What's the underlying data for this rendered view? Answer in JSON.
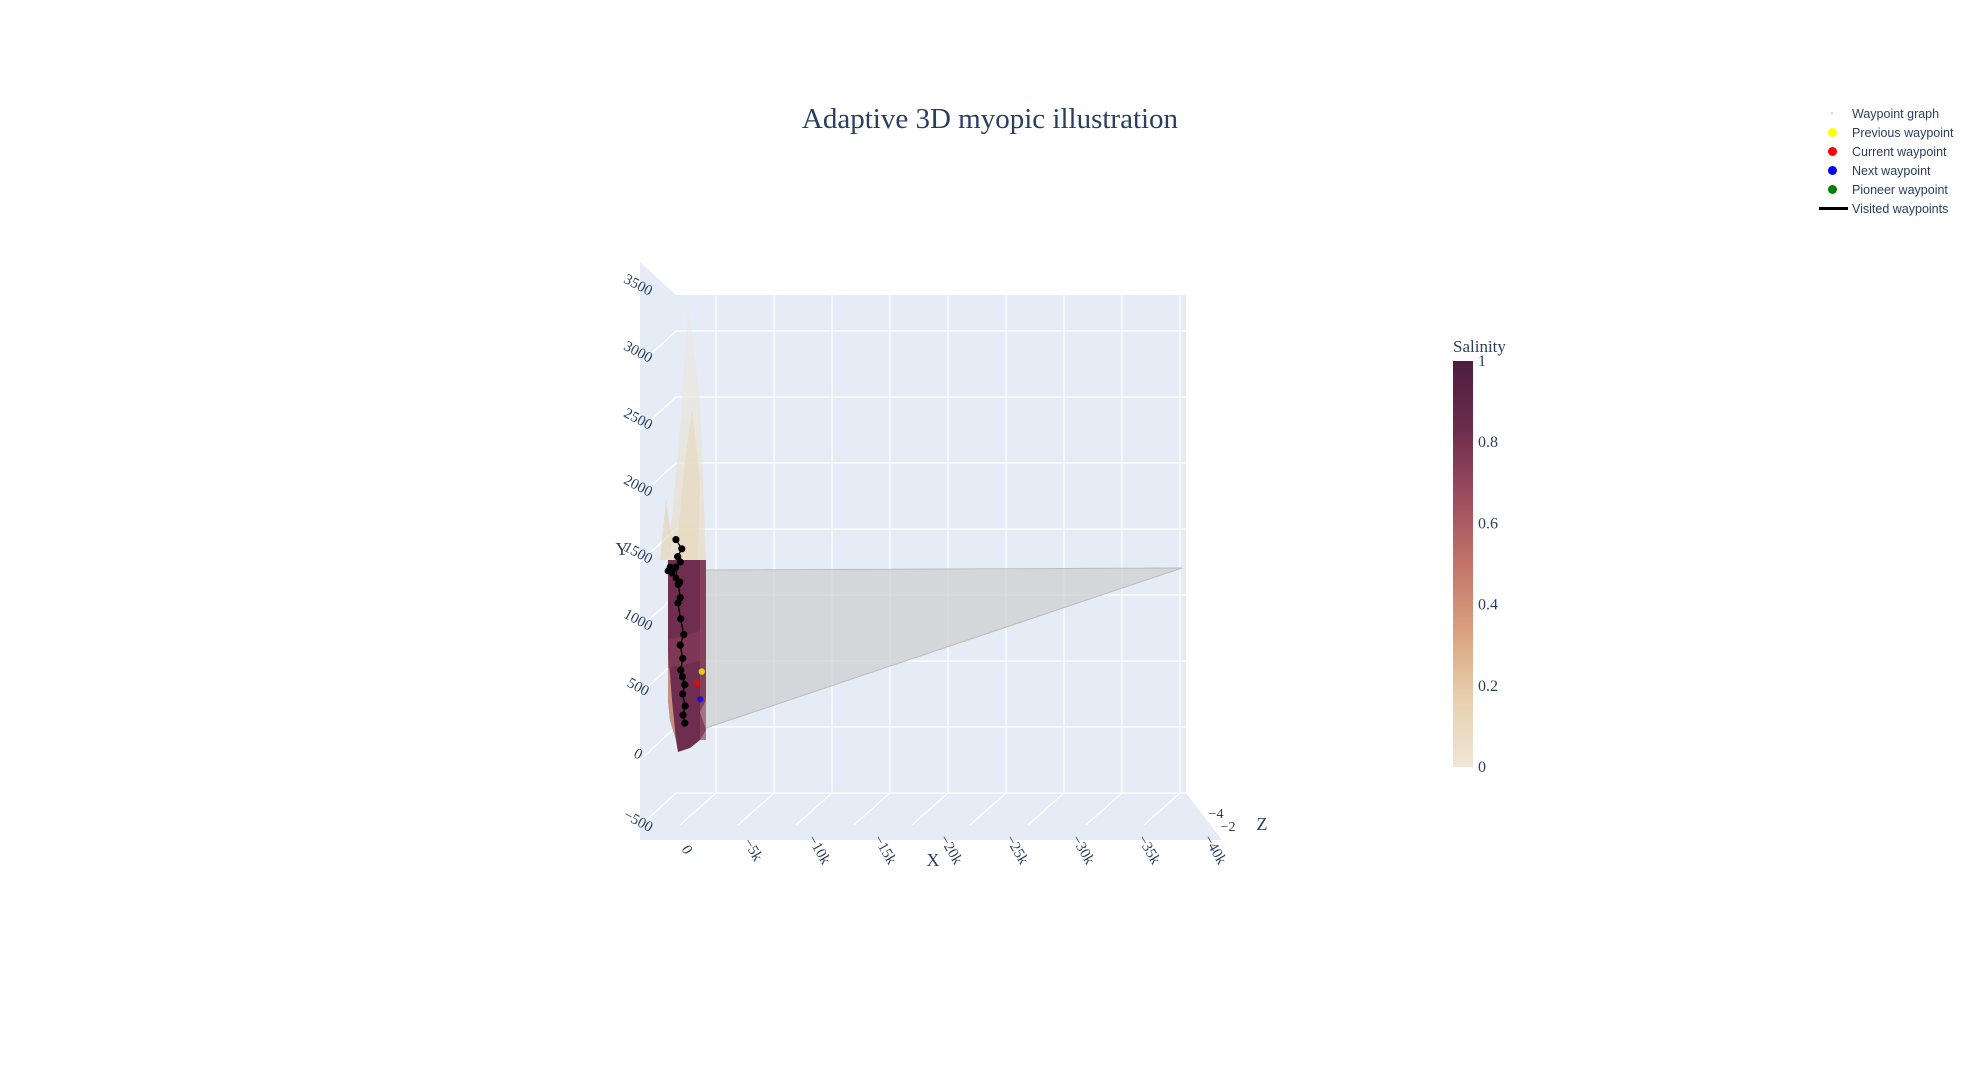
{
  "chart_data": {
    "type": "scatter3d",
    "title": "Adaptive 3D myopic illustration",
    "axes": {
      "x": {
        "label": "X",
        "tick_labels": [
          "0",
          "−5k",
          "−10k",
          "−15k",
          "−20k",
          "−25k",
          "−30k",
          "−35k",
          "−40k"
        ],
        "range": [
          0,
          -40000
        ]
      },
      "y": {
        "label": "Y",
        "tick_labels": [
          "−500",
          "0",
          "500",
          "1000",
          "1500",
          "2000",
          "2500",
          "3000",
          "3500"
        ],
        "range": [
          -500,
          3500
        ]
      },
      "z": {
        "label": "Z",
        "tick_labels": [
          "−2",
          "−4"
        ]
      }
    },
    "colorbar": {
      "title": "Salinity",
      "ticks": [
        "0",
        "0.2",
        "0.4",
        "0.6",
        "0.8",
        "1"
      ],
      "range": [
        0,
        1
      ],
      "colorscale": [
        "#efe6d6",
        "#e8cfae",
        "#d9a27f",
        "#c2746a",
        "#9b4c5e",
        "#6e2d4f",
        "#4c1e3e"
      ]
    },
    "legend_position": "top-right",
    "series": [
      {
        "name": "Waypoint graph",
        "marker": "tiny",
        "color": "#c8c8c8"
      },
      {
        "name": "Previous waypoint",
        "marker": "dot",
        "color": "#ffff00"
      },
      {
        "name": "Current waypoint",
        "marker": "dot",
        "color": "#ff0000"
      },
      {
        "name": "Next waypoint",
        "marker": "dot",
        "color": "#0000ff"
      },
      {
        "name": "Pioneer waypoint",
        "marker": "dot",
        "color": "#008000"
      },
      {
        "name": "Visited waypoints",
        "marker": "line",
        "color": "#000000"
      }
    ],
    "visited_path": [
      [
        50,
        1420
      ],
      [
        -60,
        1350
      ],
      [
        30,
        1290
      ],
      [
        -20,
        1250
      ],
      [
        80,
        1210
      ],
      [
        40,
        1080
      ],
      [
        10,
        980
      ],
      [
        60,
        940
      ],
      [
        20,
        820
      ],
      [
        -30,
        700
      ],
      [
        50,
        620
      ],
      [
        10,
        520
      ],
      [
        60,
        430
      ],
      [
        30,
        380
      ],
      [
        -10,
        320
      ],
      [
        40,
        250
      ],
      [
        0,
        160
      ],
      [
        50,
        90
      ],
      [
        20,
        30
      ]
    ],
    "previous_waypoint": [
      -600,
      420
    ],
    "current_waypoint": [
      -500,
      330
    ],
    "next_waypoint": [
      -550,
      210
    ],
    "grid": true,
    "background": "#e5ecf6"
  }
}
